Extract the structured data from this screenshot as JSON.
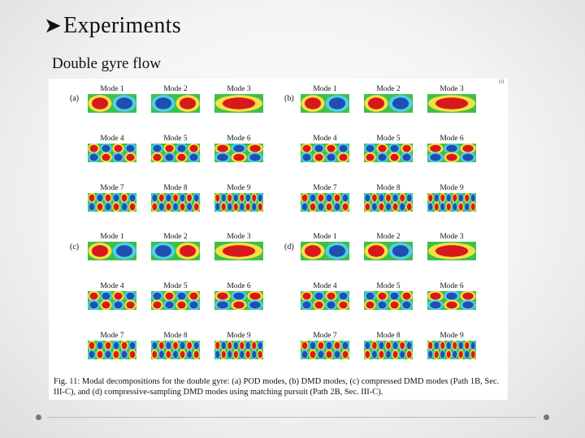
{
  "slide": {
    "title": "Experiments",
    "subtitle": "Double gyre flow"
  },
  "figure": {
    "page_number": "10",
    "panels": [
      {
        "label": "(a)",
        "modes": [
          "Mode 1",
          "Mode 2",
          "Mode 3",
          "Mode 4",
          "Mode 5",
          "Mode 6",
          "Mode 7",
          "Mode 8",
          "Mode 9"
        ]
      },
      {
        "label": "(b)",
        "modes": [
          "Mode 1",
          "Mode 2",
          "Mode 3",
          "Mode 4",
          "Mode 5",
          "Mode 6",
          "Mode 7",
          "Mode 8",
          "Mode 9"
        ]
      },
      {
        "label": "(c)",
        "modes": [
          "Mode 1",
          "Mode 2",
          "Mode 3",
          "Mode 4",
          "Mode 5",
          "Mode 6",
          "Mode 7",
          "Mode 8",
          "Mode 9"
        ]
      },
      {
        "label": "(d)",
        "modes": [
          "Mode 1",
          "Mode 2",
          "Mode 3",
          "Mode 4",
          "Mode 5",
          "Mode 6",
          "Mode 7",
          "Mode 8",
          "Mode 9"
        ]
      }
    ],
    "caption": "Fig. 11: Modal decompositions for the double gyre: (a) POD modes, (b) DMD modes, (c) compressed DMD modes (Path 1B, Sec. III-C), and (d) compressive-sampling DMD modes using matching pursuit (Path 2B, Sec. III-C)."
  }
}
